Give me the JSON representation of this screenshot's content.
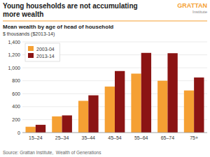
{
  "chart_data": {
    "type": "bar",
    "title": "Young households are not accumulating\nmore wealth",
    "subtitle": "Mean wealth by age of head of household",
    "y_label": "$ thousands ($2013-14)",
    "annotations": [
      "GRATTAN",
      "Institute",
      "Source: Grattan Institute,  Wealth of Generations"
    ],
    "categories": [
      "15–24",
      "25–34",
      "35–44",
      "45–54",
      "55–64",
      "65–74",
      "75+"
    ],
    "series": [
      {
        "name": "2003-04",
        "color": "#F5A033",
        "values": [
          90,
          250,
          490,
          710,
          910,
          800,
          650
        ]
      },
      {
        "name": "2013-14",
        "color": "#8B1414",
        "values": [
          120,
          265,
          575,
          950,
          1230,
          1225,
          850
        ]
      }
    ],
    "ylim": [
      0,
      1400
    ],
    "yticks": [
      0,
      200,
      400,
      600,
      800,
      {
        "value": 1000,
        "label": "1,000"
      },
      {
        "value": 1200,
        "label": "1,200"
      },
      {
        "value": 1400,
        "label": "1,400"
      }
    ],
    "grid": true,
    "legend": "upper left"
  }
}
